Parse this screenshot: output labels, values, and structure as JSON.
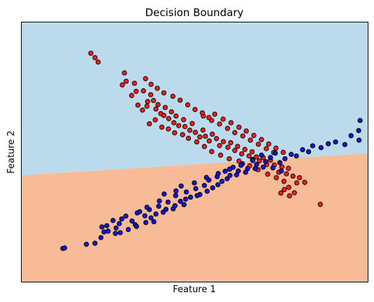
{
  "chart_data": {
    "type": "scatter",
    "title": "Decision Boundary",
    "xlabel": "Feature 1",
    "ylabel": "Feature 2",
    "xlim": [
      0,
      100
    ],
    "ylim": [
      0,
      100
    ],
    "xticks": [],
    "yticks": [],
    "grid": false,
    "legend": "none",
    "regions": {
      "boundary_line": [
        [
          0,
          41
        ],
        [
          100,
          49.5
        ]
      ],
      "above_color": "#bbdaeb",
      "below_color": "#f8bb98"
    },
    "series": [
      {
        "color": "#ee1c1c",
        "points": [
          [
            20,
            88.1
          ],
          [
            21.2,
            86.4
          ],
          [
            22.1,
            84.7
          ],
          [
            29.7,
            80.5
          ],
          [
            30.2,
            77.3
          ],
          [
            29.1,
            75.9
          ],
          [
            32.6,
            76.5
          ],
          [
            33.1,
            73.4
          ],
          [
            31.8,
            71.8
          ],
          [
            35.2,
            73.6
          ],
          [
            37.3,
            72.1
          ],
          [
            36.4,
            69.5
          ],
          [
            38.1,
            69.9
          ],
          [
            33.6,
            68.1
          ],
          [
            34.9,
            66.2
          ],
          [
            36.2,
            67.7
          ],
          [
            39.4,
            68.3
          ],
          [
            38.8,
            66.6
          ],
          [
            40.2,
            64.8
          ],
          [
            41.5,
            67.2
          ],
          [
            41.1,
            64.1
          ],
          [
            42.5,
            62.9
          ],
          [
            43.3,
            65.5
          ],
          [
            44.6,
            63.9
          ],
          [
            44,
            61.3
          ],
          [
            45.4,
            60.2
          ],
          [
            46.8,
            62.5
          ],
          [
            47.2,
            59.8
          ],
          [
            48.6,
            58.4
          ],
          [
            49.3,
            61
          ],
          [
            50.2,
            57.6
          ],
          [
            51.5,
            55.8
          ],
          [
            52.4,
            58.5
          ],
          [
            53.1,
            56.1
          ],
          [
            54.2,
            54.3
          ],
          [
            55.1,
            56.9
          ],
          [
            56.3,
            55.2
          ],
          [
            57.2,
            52.5
          ],
          [
            58.3,
            54
          ],
          [
            59.6,
            51.8
          ],
          [
            60.4,
            53.6
          ],
          [
            61.6,
            50.6
          ],
          [
            62.4,
            52.2
          ],
          [
            63.6,
            49.3
          ],
          [
            64.5,
            51
          ],
          [
            65.7,
            48.5
          ],
          [
            66.6,
            50.1
          ],
          [
            67.8,
            48.1
          ],
          [
            68.7,
            46.6
          ],
          [
            69.8,
            47.9
          ],
          [
            70.8,
            45.2
          ],
          [
            71.9,
            46.9
          ],
          [
            73,
            45
          ],
          [
            74.3,
            42.2
          ],
          [
            75.2,
            44.3
          ],
          [
            76.5,
            41.6
          ],
          [
            77.1,
            43.7
          ],
          [
            78.4,
            40.7
          ],
          [
            79.5,
            38.1
          ],
          [
            80.3,
            40.1
          ],
          [
            81.8,
            38.3
          ],
          [
            36.9,
            60.9
          ],
          [
            38.6,
            62.4
          ],
          [
            40.5,
            59.6
          ],
          [
            42.4,
            58.9
          ],
          [
            44.2,
            57.4
          ],
          [
            46.5,
            56.7
          ],
          [
            48.2,
            55.3
          ],
          [
            50.6,
            53.9
          ],
          [
            52.8,
            52.1
          ],
          [
            54.9,
            50.2
          ],
          [
            57.5,
            48.8
          ],
          [
            60,
            47.4
          ],
          [
            62.8,
            46.5
          ],
          [
            65.9,
            44.7
          ],
          [
            68.3,
            43.2
          ],
          [
            71.1,
            41.5
          ],
          [
            73.6,
            40.1
          ],
          [
            75.8,
            38.7
          ],
          [
            77.2,
            36.4
          ],
          [
            74.9,
            34.2
          ],
          [
            77.4,
            33.1
          ],
          [
            78.8,
            34.3
          ],
          [
            75.9,
            35.5
          ],
          [
            86.3,
            29.8
          ],
          [
            52.5,
            63.9
          ],
          [
            54.9,
            62.2
          ],
          [
            57.2,
            60.8
          ],
          [
            59.5,
            59.1
          ],
          [
            61.6,
            57.5
          ],
          [
            63.9,
            56.2
          ],
          [
            66.1,
            54.6
          ],
          [
            68.4,
            53
          ],
          [
            70.7,
            51.3
          ],
          [
            72.8,
            49.8
          ],
          [
            55.8,
            64.6
          ],
          [
            58.2,
            62.7
          ],
          [
            60.5,
            61.3
          ],
          [
            62.8,
            59.6
          ],
          [
            64.9,
            58.1
          ],
          [
            67.1,
            56.4
          ],
          [
            69.3,
            54.8
          ],
          [
            71.4,
            53.1
          ],
          [
            73.5,
            51.5
          ],
          [
            75.6,
            49.9
          ],
          [
            39.2,
            74.6
          ],
          [
            41.1,
            72.8
          ],
          [
            43.7,
            71.5
          ],
          [
            45.8,
            70
          ],
          [
            48,
            68.2
          ],
          [
            50.1,
            66.4
          ],
          [
            52.2,
            65.1
          ],
          [
            54.1,
            63.3
          ],
          [
            35.8,
            78.3
          ],
          [
            37.4,
            76.1
          ]
        ]
      },
      {
        "color": "#1414cc",
        "points": [
          [
            11.9,
            12.8
          ],
          [
            12.4,
            13
          ],
          [
            18.7,
            14.4
          ],
          [
            21.2,
            14.8
          ],
          [
            22.9,
            17
          ],
          [
            23.8,
            19.2
          ],
          [
            25,
            19.5
          ],
          [
            23.2,
            21.1
          ],
          [
            24.6,
            21.6
          ],
          [
            27.1,
            18.6
          ],
          [
            28.5,
            18.9
          ],
          [
            27.3,
            20.7
          ],
          [
            26.4,
            23.6
          ],
          [
            28.9,
            24.2
          ],
          [
            30.1,
            25.3
          ],
          [
            31.9,
            23.4
          ],
          [
            32.8,
            22
          ],
          [
            33.4,
            26.5
          ],
          [
            35.6,
            25.4
          ],
          [
            36.9,
            27.8
          ],
          [
            37.4,
            24.6
          ],
          [
            38.2,
            23.1
          ],
          [
            39.6,
            29.1
          ],
          [
            40.9,
            26.8
          ],
          [
            42.3,
            30.7
          ],
          [
            43.8,
            28.1
          ],
          [
            44.5,
            33.2
          ],
          [
            45.9,
            31
          ],
          [
            46.9,
            29.7
          ],
          [
            47.6,
            34.6
          ],
          [
            48.8,
            32.6
          ],
          [
            50.3,
            35.9
          ],
          [
            51.5,
            33.6
          ],
          [
            52.8,
            37.1
          ],
          [
            54.1,
            39.2
          ],
          [
            55.2,
            36.2
          ],
          [
            56.5,
            40.5
          ],
          [
            57.9,
            38.7
          ],
          [
            58.8,
            42.6
          ],
          [
            60.2,
            41
          ],
          [
            61.1,
            44.1
          ],
          [
            62.6,
            42.7
          ],
          [
            63.8,
            45.5
          ],
          [
            65.3,
            43.6
          ],
          [
            66.7,
            47.1
          ],
          [
            67.9,
            45.2
          ],
          [
            69.3,
            48.8
          ],
          [
            70.5,
            46.3
          ],
          [
            71.9,
            47.9
          ],
          [
            73.3,
            49.6
          ],
          [
            74.6,
            45.9
          ],
          [
            76.1,
            47.4
          ],
          [
            77.9,
            49.1
          ],
          [
            79.4,
            48.5
          ],
          [
            81.2,
            50.9
          ],
          [
            82.9,
            50.1
          ],
          [
            84.1,
            52.4
          ],
          [
            86.5,
            51.7
          ],
          [
            88.6,
            53.2
          ],
          [
            90.7,
            53.9
          ],
          [
            93.4,
            52.9
          ],
          [
            95.2,
            56.3
          ],
          [
            97.4,
            58.3
          ],
          [
            97.8,
            62.2
          ],
          [
            97.5,
            54.6
          ],
          [
            34.1,
            27
          ],
          [
            36.2,
            28.7
          ],
          [
            39.8,
            31.1
          ],
          [
            41.2,
            33.8
          ],
          [
            44.6,
            35
          ],
          [
            46.1,
            36.9
          ],
          [
            49.9,
            38.1
          ],
          [
            53.4,
            40.2
          ],
          [
            56.8,
            41.7
          ],
          [
            60.1,
            43.4
          ],
          [
            63.4,
            44.9
          ],
          [
            66.8,
            46.7
          ],
          [
            69.8,
            44.2
          ],
          [
            72.6,
            43.9
          ],
          [
            75,
            42.7
          ],
          [
            28.2,
            22.4
          ],
          [
            30.8,
            20.1
          ],
          [
            33.2,
            21.3
          ],
          [
            35.9,
            22.8
          ],
          [
            38.8,
            26.1
          ],
          [
            41.7,
            27.9
          ],
          [
            44.3,
            29.3
          ],
          [
            47.4,
            31.8
          ],
          [
            50.7,
            33.2
          ],
          [
            53.6,
            34.9
          ],
          [
            56.7,
            37.4
          ],
          [
            59.4,
            39.7
          ],
          [
            62.1,
            41.2
          ],
          [
            64.7,
            42.2
          ],
          [
            67.5,
            43.6
          ]
        ]
      }
    ]
  }
}
